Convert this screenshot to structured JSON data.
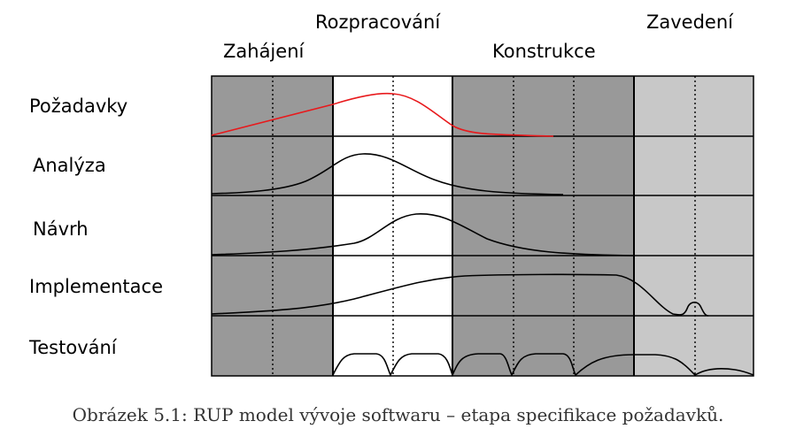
{
  "phases": [
    {
      "name": "Zahájení",
      "shade": "#999999"
    },
    {
      "name": "Rozpracování",
      "shade": "#ffffff"
    },
    {
      "name": "Konstrukce",
      "shade": "#999999"
    },
    {
      "name": "Zavedení",
      "shade": "#c8c8c8"
    }
  ],
  "disciplines": [
    "Požadavky",
    "Analýza",
    "Návrh",
    "Implementace",
    "Testování"
  ],
  "highlight_discipline": "Požadavky",
  "colors": {
    "highlight": "#e8191c",
    "curve": "#000000",
    "grid": "#000000"
  },
  "caption": "Obrázek 5.1: RUP model vývoje softwaru – etapa specifikace požadavků."
}
